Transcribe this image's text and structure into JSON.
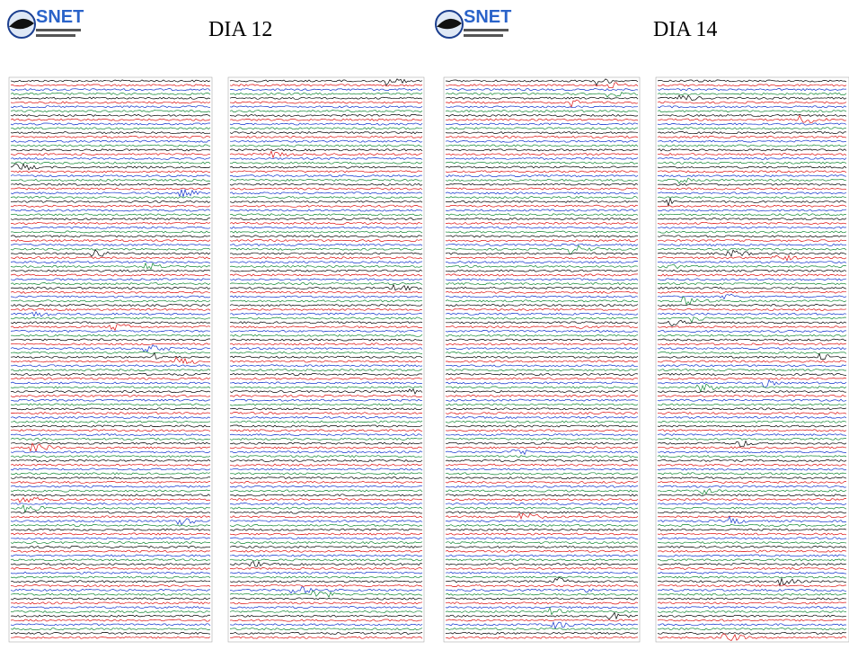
{
  "panels": [
    {
      "logo": "SNET",
      "title": "DIA 12"
    },
    {
      "logo": "SNET",
      "title": "DIA 14"
    }
  ]
}
